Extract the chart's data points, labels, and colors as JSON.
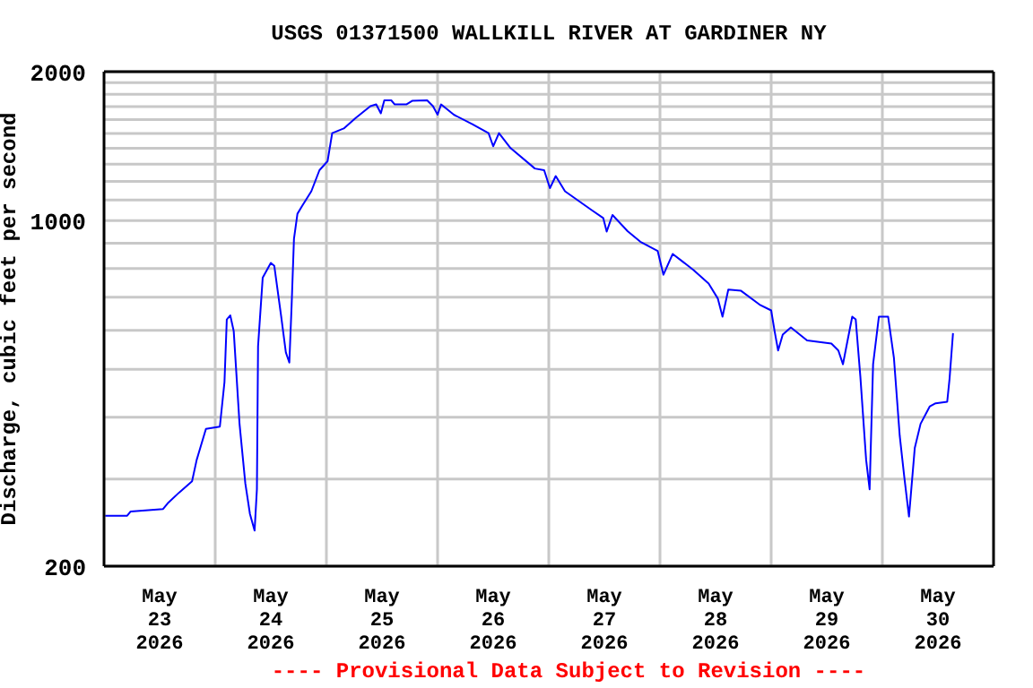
{
  "chart_data": {
    "type": "line",
    "title": "USGS 01371500 WALLKILL RIVER AT GARDINER NY",
    "ylabel": "Discharge, cubic feet per second",
    "annotations": [
      "---- Provisional Data Subject to Revision ----"
    ],
    "log": "y",
    "grid": true,
    "marker": "none",
    "line_style": "solid",
    "xlim": [
      "2026-05-23T00:00",
      "2026-05-31T00:00"
    ],
    "xticks": [
      {
        "value": "2026-05-23T12:00",
        "label": "May\n23\n2026"
      },
      {
        "value": "2026-05-24T00:00",
        "label": null
      },
      {
        "value": "2026-05-24T12:00",
        "label": "May\n24\n2026"
      },
      {
        "value": "2026-05-25T00:00",
        "label": null
      },
      {
        "value": "2026-05-25T12:00",
        "label": "May\n25\n2026"
      },
      {
        "value": "2026-05-26T00:00",
        "label": null
      },
      {
        "value": "2026-05-26T12:00",
        "label": "May\n26\n2026"
      },
      {
        "value": "2026-05-27T00:00",
        "label": null
      },
      {
        "value": "2026-05-27T12:00",
        "label": "May\n27\n2026"
      },
      {
        "value": "2026-05-28T00:00",
        "label": null
      },
      {
        "value": "2026-05-28T12:00",
        "label": "May\n28\n2026"
      },
      {
        "value": "2026-05-29T00:00",
        "label": null
      },
      {
        "value": "2026-05-29T12:00",
        "label": "May\n29\n2026"
      },
      {
        "value": "2026-05-30T00:00",
        "label": null
      },
      {
        "value": "2026-05-30T12:00",
        "label": "May\n30\n2026"
      }
    ],
    "ylim": [
      200,
      2000
    ],
    "yticks": [
      200,
      {
        "value": 300,
        "label": null
      },
      {
        "value": 400,
        "label": null
      },
      {
        "value": 500,
        "label": null
      },
      {
        "value": 600,
        "label": null
      },
      {
        "value": 700,
        "label": null
      },
      {
        "value": 800,
        "label": null
      },
      {
        "value": 900,
        "label": null
      },
      1000,
      {
        "value": 1100,
        "label": null
      },
      {
        "value": 1200,
        "label": null
      },
      {
        "value": 1300,
        "label": null
      },
      {
        "value": 1400,
        "label": null
      },
      {
        "value": 1500,
        "label": null
      },
      {
        "value": 1600,
        "label": null
      },
      {
        "value": 1700,
        "label": null
      },
      {
        "value": 1800,
        "label": null
      },
      {
        "value": 1900,
        "label": null
      },
      2000
    ],
    "series": [
      {
        "color": "#0000ff",
        "x": [
          "2026-05-23T00:15",
          "2026-05-23T05:00",
          "2026-05-23T05:45",
          "2026-05-23T12:45",
          "2026-05-23T13:45",
          "2026-05-23T16:15",
          "2026-05-23T19:00",
          "2026-05-23T20:00",
          "2026-05-23T22:00",
          "2026-05-24T01:00",
          "2026-05-24T02:00",
          "2026-05-24T02:30",
          "2026-05-24T03:15",
          "2026-05-24T04:00",
          "2026-05-24T05:15",
          "2026-05-24T06:30",
          "2026-05-24T07:30",
          "2026-05-24T08:30",
          "2026-05-24T09:00",
          "2026-05-24T09:15",
          "2026-05-24T10:15",
          "2026-05-24T12:00",
          "2026-05-24T12:45",
          "2026-05-24T14:15",
          "2026-05-24T15:15",
          "2026-05-24T16:00",
          "2026-05-24T16:30",
          "2026-05-24T17:00",
          "2026-05-24T17:45",
          "2026-05-24T18:45",
          "2026-05-24T20:45",
          "2026-05-24T22:30",
          "2026-05-25T00:15",
          "2026-05-25T01:15",
          "2026-05-25T03:45",
          "2026-05-25T06:15",
          "2026-05-25T09:30",
          "2026-05-25T10:45",
          "2026-05-25T11:45",
          "2026-05-25T12:30",
          "2026-05-25T14:00",
          "2026-05-25T14:45",
          "2026-05-25T17:15",
          "2026-05-25T18:30",
          "2026-05-25T21:45",
          "2026-05-25T23:00",
          "2026-05-26T00:00",
          "2026-05-26T00:45",
          "2026-05-26T03:30",
          "2026-05-26T07:30",
          "2026-05-26T11:00",
          "2026-05-26T12:00",
          "2026-05-26T13:15",
          "2026-05-26T15:45",
          "2026-05-26T21:00",
          "2026-05-26T23:00",
          "2026-05-27T00:15",
          "2026-05-27T01:30",
          "2026-05-27T03:30",
          "2026-05-27T09:15",
          "2026-05-27T11:45",
          "2026-05-27T12:30",
          "2026-05-27T13:45",
          "2026-05-27T17:00",
          "2026-05-27T19:45",
          "2026-05-27T23:30",
          "2026-05-28T00:45",
          "2026-05-28T02:45",
          "2026-05-28T07:15",
          "2026-05-28T10:30",
          "2026-05-28T12:30",
          "2026-05-28T13:30",
          "2026-05-28T14:45",
          "2026-05-28T17:30",
          "2026-05-28T21:30",
          "2026-05-29T00:00",
          "2026-05-29T00:45",
          "2026-05-29T01:30",
          "2026-05-29T02:30",
          "2026-05-29T04:15",
          "2026-05-29T07:45",
          "2026-05-29T13:00",
          "2026-05-29T14:30",
          "2026-05-29T15:30",
          "2026-05-29T16:15",
          "2026-05-29T17:30",
          "2026-05-29T18:15",
          "2026-05-29T19:15",
          "2026-05-29T20:30",
          "2026-05-29T21:15",
          "2026-05-29T22:00",
          "2026-05-29T23:15",
          "2026-05-30T01:15",
          "2026-05-30T02:30",
          "2026-05-30T03:45",
          "2026-05-30T04:45",
          "2026-05-30T05:45",
          "2026-05-30T07:00",
          "2026-05-30T08:15",
          "2026-05-30T10:15",
          "2026-05-30T11:30",
          "2026-05-30T14:00",
          "2026-05-30T14:30",
          "2026-05-30T15:15"
        ],
        "values": [
          253,
          253,
          258,
          261,
          268,
          282,
          297,
          328,
          379,
          383,
          471,
          631,
          643,
          597,
          388,
          294,
          255,
          236,
          286,
          557,
          766,
          821,
          810,
          639,
          541,
          516,
          676,
          918,
          1032,
          1070,
          1146,
          1264,
          1318,
          1502,
          1535,
          1610,
          1703,
          1717,
          1647,
          1750,
          1750,
          1717,
          1717,
          1746,
          1750,
          1703,
          1637,
          1717,
          1637,
          1566,
          1502,
          1413,
          1502,
          1401,
          1274,
          1264,
          1163,
          1230,
          1146,
          1050,
          1012,
          950,
          1026,
          952,
          906,
          868,
          777,
          856,
          794,
          746,
          695,
          639,
          725,
          721,
          676,
          658,
          597,
          546,
          588,
          608,
          572,
          564,
          546,
          512,
          557,
          639,
          631,
          484,
          328,
          286,
          512,
          639,
          639,
          527,
          367,
          302,
          252,
          347,
          388,
          421,
          427,
          430,
          478,
          592
        ]
      }
    ]
  }
}
